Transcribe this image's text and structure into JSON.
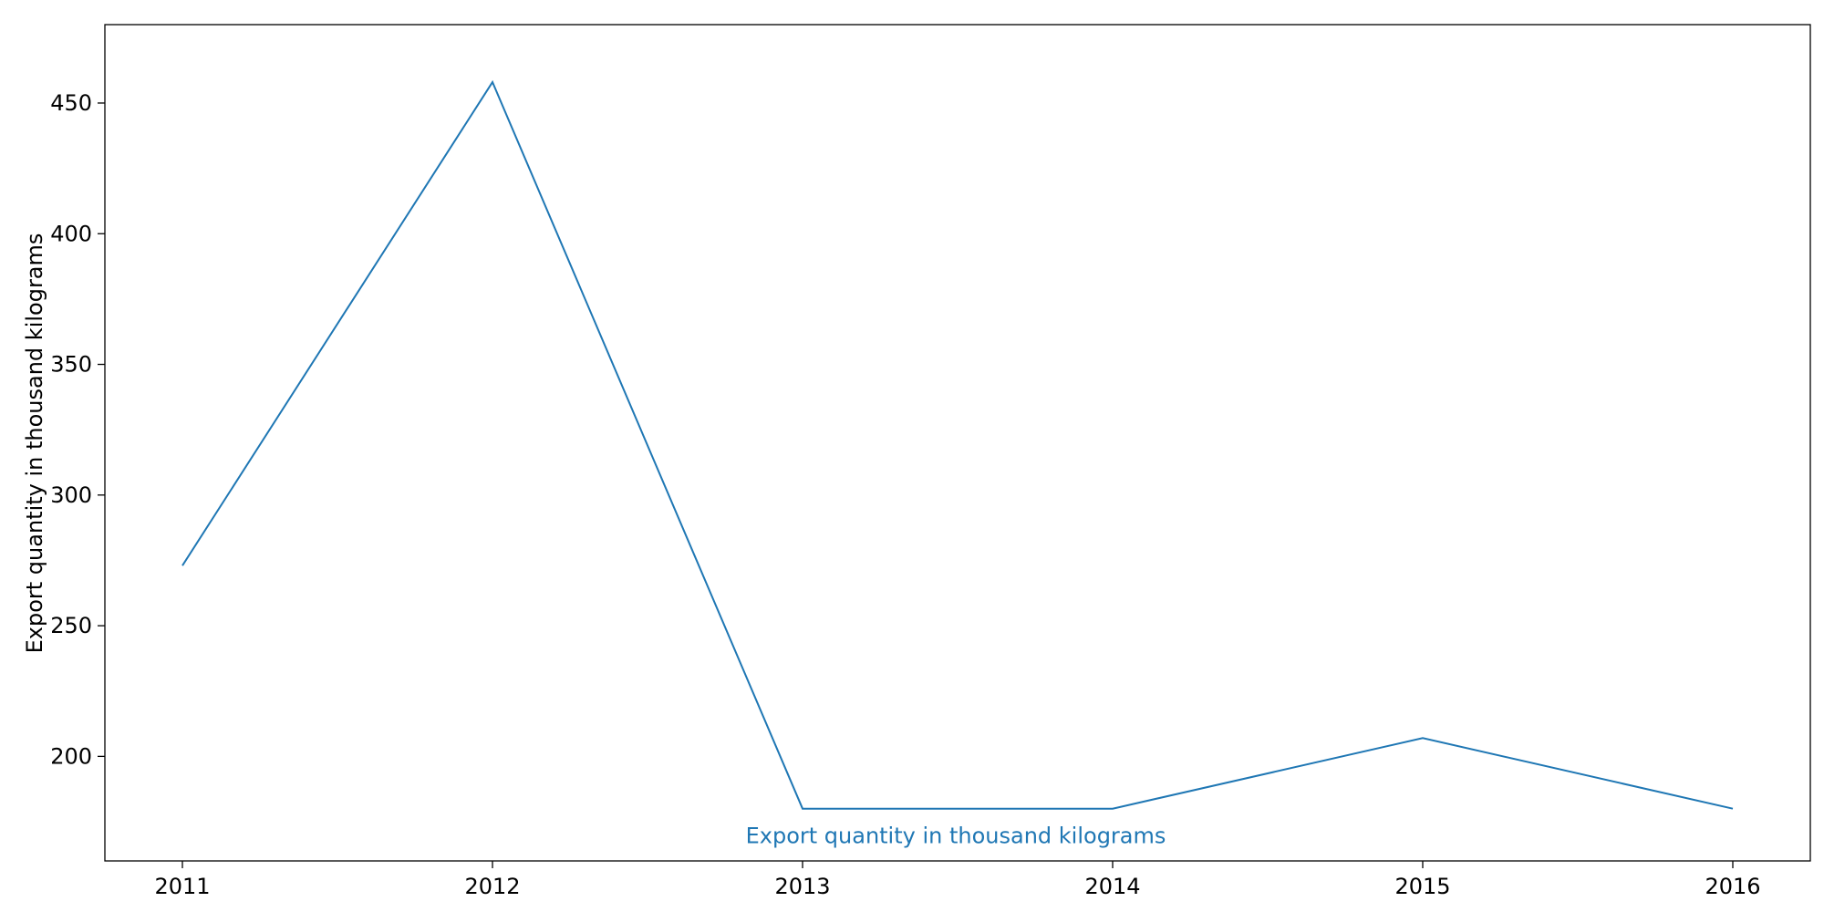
{
  "chart_data": {
    "type": "line",
    "title": "",
    "xlabel": "",
    "ylabel": "Export quantity in thousand kilograms",
    "x": [
      2011,
      2012,
      2013,
      2014,
      2015,
      2016
    ],
    "series": [
      {
        "name": "Export quantity in thousand kilograms",
        "values": [
          273,
          458,
          180,
          180,
          207,
          180
        ],
        "color": "#1f77b4"
      }
    ],
    "xticks": [
      "2011",
      "2012",
      "2013",
      "2014",
      "2015",
      "2016"
    ],
    "yticks": [
      "200",
      "250",
      "300",
      "350",
      "400",
      "450"
    ],
    "xlim": [
      2010.75,
      2016.25
    ],
    "ylim": [
      160,
      480
    ],
    "grid": false,
    "legend": "none",
    "series_label_position": "bottom-center"
  }
}
